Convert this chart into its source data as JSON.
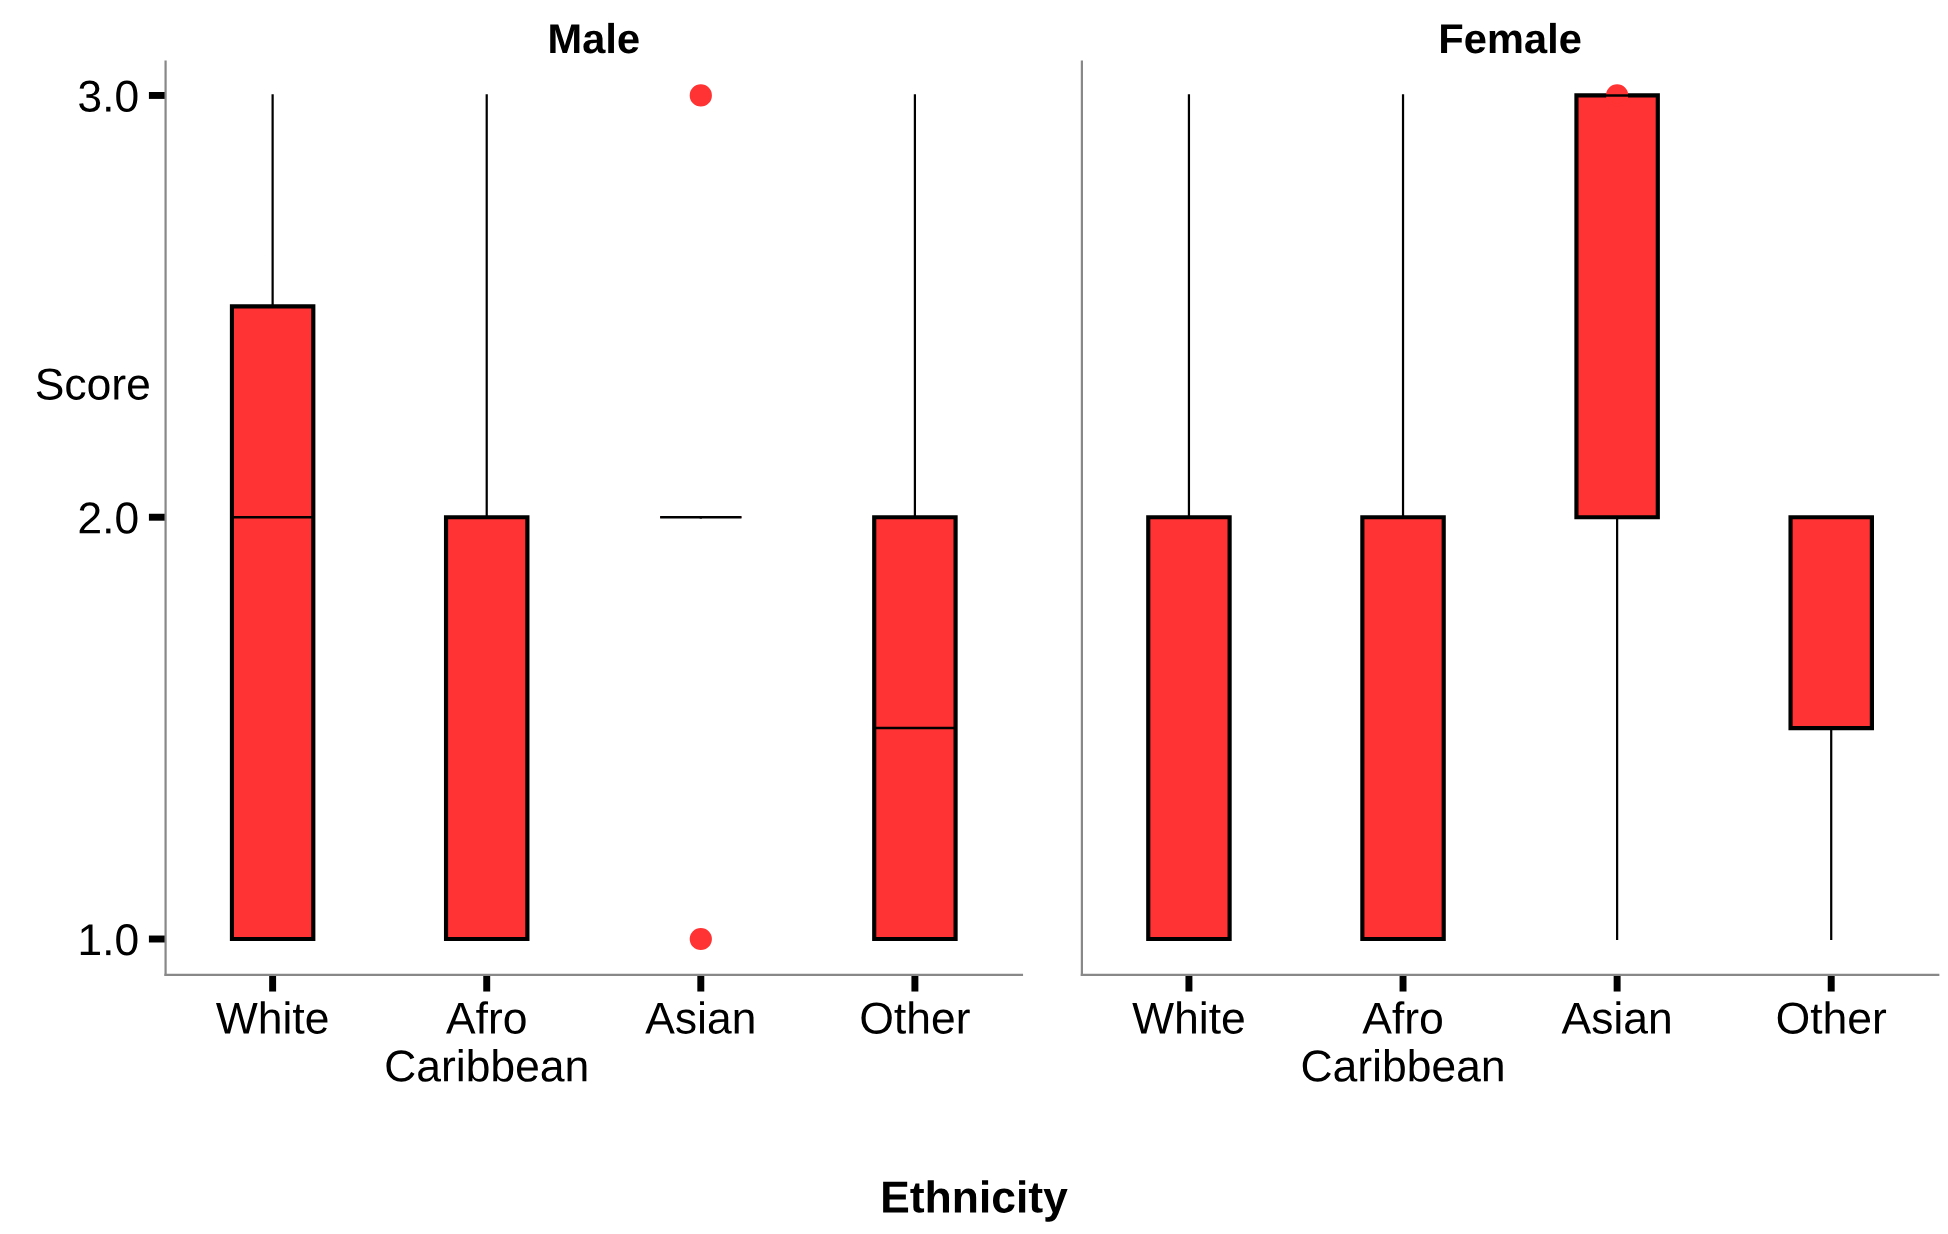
{
  "chart_data": [
    {
      "type": "box",
      "title": "Male",
      "ylabel": "Score",
      "xlabel": "Ethnicity",
      "categories": [
        "White",
        "Afro\nCaribbean",
        "Asian",
        "Other"
      ],
      "color": "#ff3333",
      "ylim": [
        0.915,
        3.08
      ],
      "yticks": [
        {
          "value": 1,
          "label": "1.0"
        },
        {
          "value": 2,
          "label": "2.0"
        },
        {
          "value": 3,
          "label": "3.0"
        }
      ],
      "boxes": [
        {
          "low": 1,
          "q1": 1,
          "median": 2,
          "q3": 2.5,
          "high": 3
        },
        {
          "low": 1,
          "q1": 1,
          "median": 2,
          "q3": 2,
          "high": 3
        },
        {
          "low": 2,
          "q1": 2,
          "median": 2,
          "q3": 2,
          "high": 2,
          "outliers": [
            1,
            3
          ]
        },
        {
          "low": 1,
          "q1": 1,
          "median": 1.5,
          "q3": 2,
          "high": 3
        }
      ]
    },
    {
      "type": "box",
      "title": "Female",
      "categories": [
        "White",
        "Afro\nCaribbean",
        "Asian",
        "Other"
      ],
      "color": "#ff3333",
      "ylim": [
        0.915,
        3.08
      ],
      "tick_labels": "x",
      "boxes": [
        {
          "low": 1,
          "q1": 1,
          "median": 2,
          "q3": 2,
          "high": 3
        },
        {
          "low": 1,
          "q1": 1,
          "median": 2,
          "q3": 2,
          "high": 3
        },
        {
          "low": 1,
          "q1": 2,
          "median": 3,
          "q3": 3,
          "high": 3,
          "outliers": [
            3
          ]
        },
        {
          "low": 1,
          "q1": 1.5,
          "median": 2,
          "q3": 2,
          "high": 2
        }
      ]
    }
  ]
}
